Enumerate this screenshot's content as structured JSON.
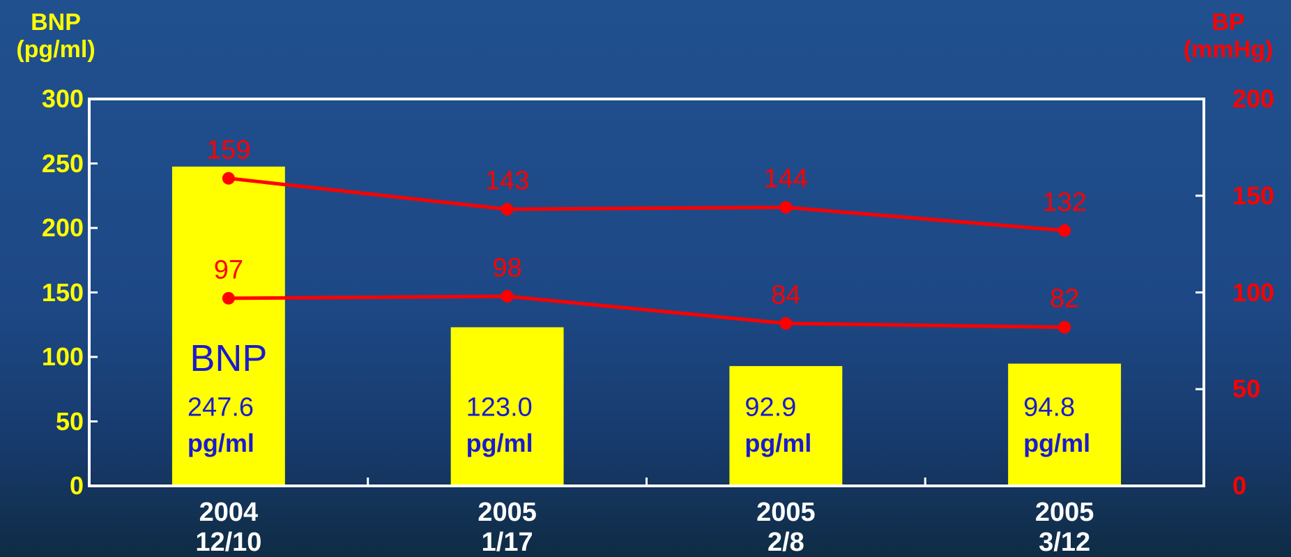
{
  "chart_data": {
    "type": "bar",
    "categories": [
      "2004\n12/10",
      "2005\n1/17",
      "2005\n2/8",
      "2005\n3/12"
    ],
    "y_label": "BNP\n(pg/ml)",
    "y2_label": "BP\n(mmHg)",
    "ylim": [
      0,
      300
    ],
    "yticks": [
      0,
      50,
      100,
      150,
      200,
      250,
      300
    ],
    "y2lim": [
      0,
      200
    ],
    "y2ticks": [
      0,
      50,
      100,
      150,
      200
    ],
    "series": [
      {
        "name": "BNP",
        "type": "bar",
        "color": "#ffff00",
        "label_color": "#1a1ad0",
        "values": [
          247.6,
          123.0,
          92.9,
          94.8
        ],
        "value_labels": [
          "247.6",
          "123.0",
          "92.9",
          "94.8"
        ],
        "value_unit": "pg/ml"
      },
      {
        "type": "line",
        "axis": "y2",
        "color": "#ff0000",
        "values": [
          159,
          143,
          144,
          132
        ]
      },
      {
        "type": "line",
        "axis": "y2",
        "color": "#ff0000",
        "values": [
          97,
          98,
          84,
          82
        ]
      }
    ]
  }
}
